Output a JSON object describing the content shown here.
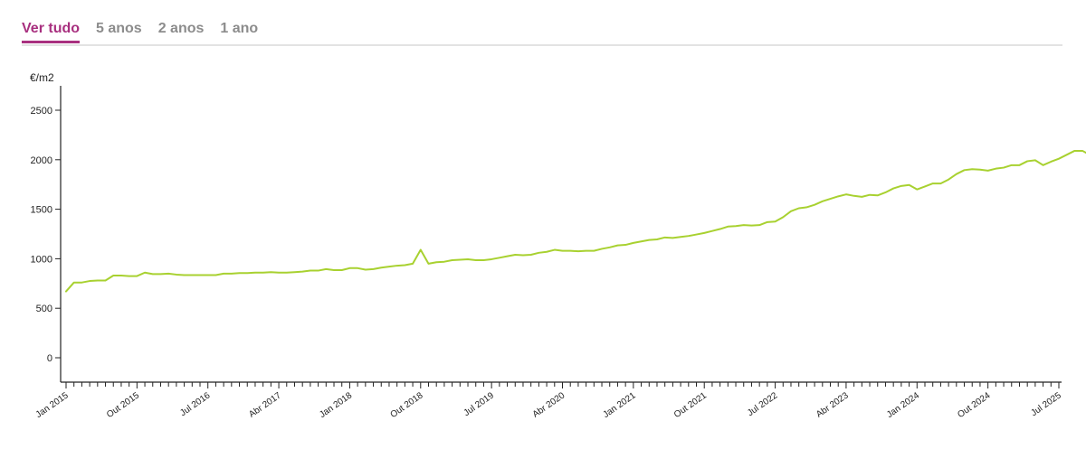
{
  "tabs": [
    {
      "label": "Ver tudo",
      "active": true
    },
    {
      "label": "5 anos",
      "active": false
    },
    {
      "label": "2 anos",
      "active": false
    },
    {
      "label": "1 ano",
      "active": false
    }
  ],
  "colors": {
    "accent": "#a8307f",
    "line": "#a8d130",
    "tab_inactive": "#8c8c8c",
    "axis": "#222222"
  },
  "chart_data": {
    "type": "line",
    "ylabel": "€/m2",
    "xlabel": "",
    "title": "",
    "ylim": [
      -250,
      2700
    ],
    "yticks": [
      0,
      500,
      1000,
      1500,
      2000,
      2500
    ],
    "grid": false,
    "x_start": "2015-01",
    "x_end": "2025-07",
    "x_tick_labels": [
      {
        "label": "Jan 2015",
        "date": "2015-01"
      },
      {
        "label": "Out 2015",
        "date": "2015-10"
      },
      {
        "label": "Jul 2016",
        "date": "2016-07"
      },
      {
        "label": "Abr 2017",
        "date": "2017-04"
      },
      {
        "label": "Jan 2018",
        "date": "2018-01"
      },
      {
        "label": "Out 2018",
        "date": "2018-10"
      },
      {
        "label": "Jul 2019",
        "date": "2019-07"
      },
      {
        "label": "Abr 2020",
        "date": "2020-04"
      },
      {
        "label": "Jan 2021",
        "date": "2021-01"
      },
      {
        "label": "Out 2021",
        "date": "2021-10"
      },
      {
        "label": "Jul 2022",
        "date": "2022-07"
      },
      {
        "label": "Abr 2023",
        "date": "2023-04"
      },
      {
        "label": "Jan 2024",
        "date": "2024-01"
      },
      {
        "label": "Out 2024",
        "date": "2024-10"
      },
      {
        "label": "Jul 2025",
        "date": "2025-07"
      }
    ],
    "series": [
      {
        "values": [
          670,
          760,
          760,
          775,
          780,
          780,
          830,
          830,
          825,
          825,
          860,
          845,
          845,
          850,
          840,
          835,
          835,
          835,
          835,
          835,
          850,
          850,
          855,
          855,
          860,
          860,
          865,
          860,
          860,
          865,
          870,
          880,
          880,
          895,
          885,
          885,
          905,
          905,
          890,
          895,
          910,
          920,
          930,
          935,
          950,
          1090,
          950,
          965,
          970,
          985,
          990,
          995,
          985,
          985,
          995,
          1010,
          1025,
          1040,
          1035,
          1040,
          1060,
          1070,
          1090,
          1080,
          1080,
          1075,
          1080,
          1080,
          1100,
          1115,
          1135,
          1140,
          1160,
          1175,
          1190,
          1195,
          1215,
          1210,
          1220,
          1230,
          1245,
          1260,
          1280,
          1300,
          1325,
          1330,
          1340,
          1335,
          1340,
          1370,
          1375,
          1420,
          1480,
          1510,
          1520,
          1545,
          1580,
          1605,
          1630,
          1650,
          1635,
          1625,
          1645,
          1640,
          1670,
          1710,
          1735,
          1745,
          1700,
          1730,
          1760,
          1760,
          1800,
          1855,
          1895,
          1905,
          1900,
          1890,
          1910,
          1920,
          1945,
          1945,
          1985,
          1995,
          1945,
          1980,
          2010,
          2050,
          2090,
          2090,
          2045,
          2050
        ]
      }
    ]
  }
}
